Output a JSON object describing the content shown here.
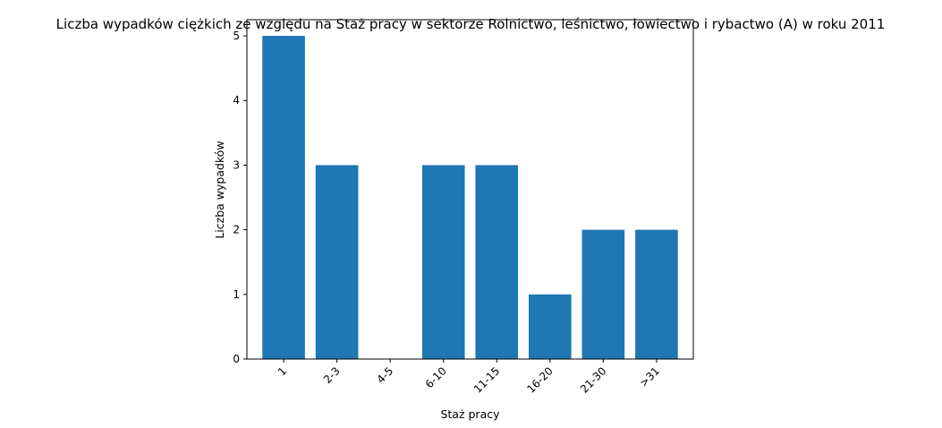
{
  "chart_data": {
    "type": "bar",
    "title": "Liczba wypadków ciężkich ze względu na Staż pracy w sektorze Rolnictwo, leśnictwo, łowiectwo i rybactwo (A) w roku 2011",
    "xlabel": "Staż pracy",
    "ylabel": "Liczba wypadków",
    "categories": [
      "1",
      "2-3",
      "4-5",
      "6-10",
      "11-15",
      "16-20",
      "21-30",
      ">31"
    ],
    "values": [
      5,
      3,
      0,
      3,
      3,
      1,
      2,
      2
    ],
    "ylim": [
      0,
      5.25
    ],
    "yticks": [
      0,
      1,
      2,
      3,
      4,
      5
    ],
    "grid": false,
    "bar_color": "#1f77b4",
    "xtick_rotation": 45
  }
}
